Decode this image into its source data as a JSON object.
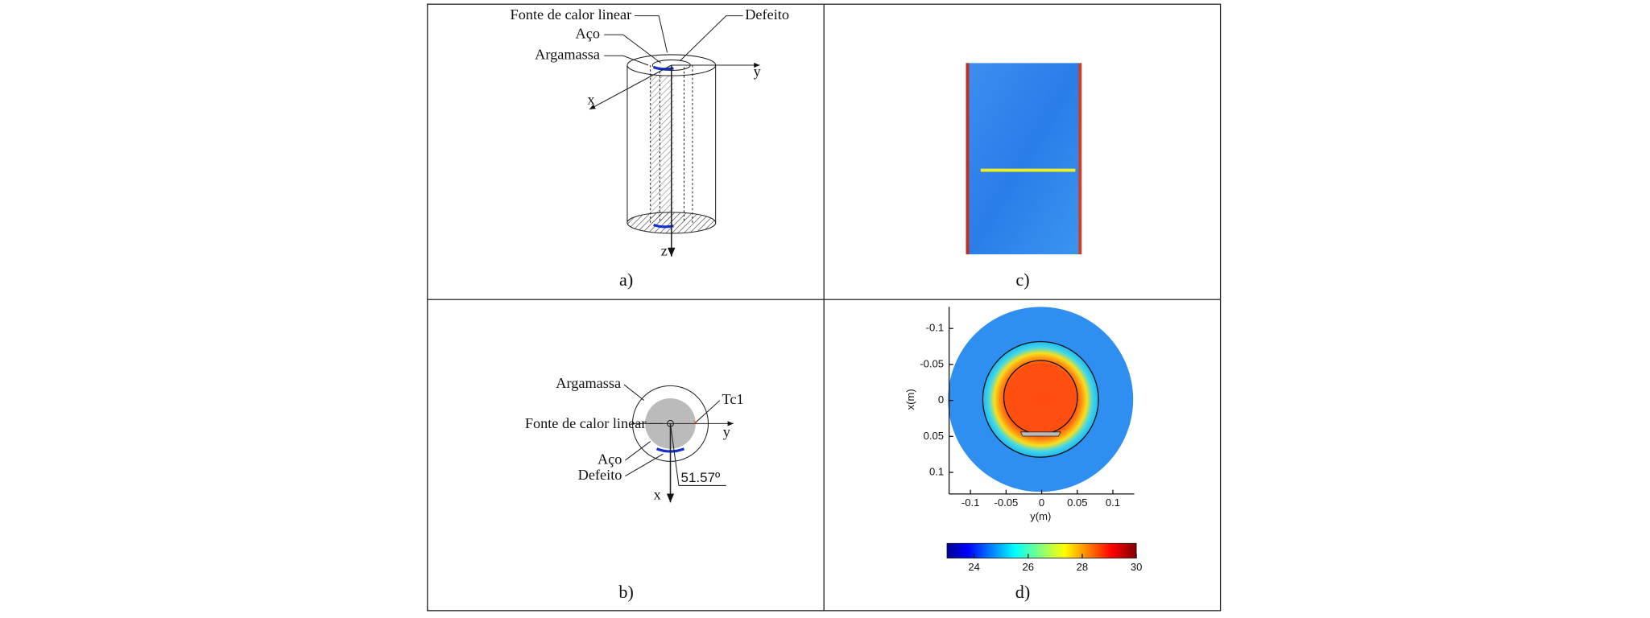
{
  "panels": {
    "a": {
      "caption": "a)",
      "labels": [
        "Fonte de calor linear",
        "Defeito",
        "Aço",
        "Argamassa",
        "y",
        "x",
        "z"
      ]
    },
    "b": {
      "caption": "b)",
      "labels": [
        "Argamassa",
        "Tc1",
        "Fonte de calor linear",
        "y",
        "Aço",
        "Defeito",
        "51.57º",
        "x"
      ]
    },
    "c": {
      "caption": "c)"
    },
    "d": {
      "caption": "d)",
      "xlabel": "y(m)",
      "ylabel": "x(m)",
      "xlim": [
        -0.13,
        0.13
      ],
      "ylim": [
        -0.13,
        0.13
      ],
      "xticks": [
        -0.1,
        -0.05,
        0,
        0.05,
        0.1
      ],
      "yticks": [
        -0.1,
        -0.05,
        0,
        0.05,
        0.1
      ],
      "colorbar": {
        "lim": [
          23,
          30
        ],
        "ticks": [
          24,
          26,
          28,
          30
        ]
      }
    }
  }
}
